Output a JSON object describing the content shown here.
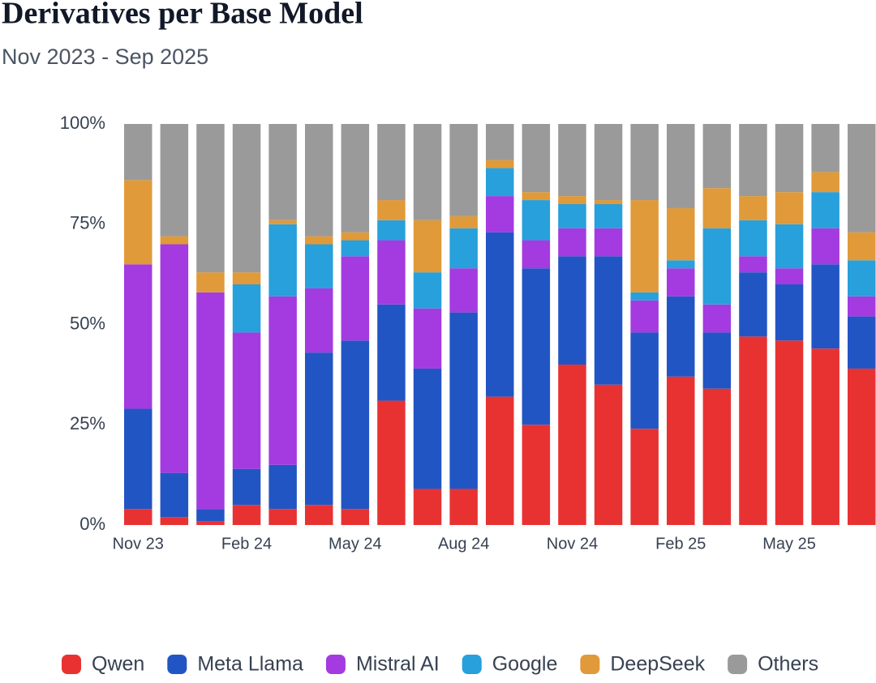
{
  "chart_data": {
    "type": "stacked_bar_percent",
    "title": "Derivatives per Base Model",
    "subtitle": "Nov 2023 - Sep 2025",
    "categories": [
      "Nov 23",
      null,
      null,
      "Feb 24",
      null,
      null,
      "May 24",
      null,
      null,
      "Aug 24",
      null,
      null,
      "Nov 24",
      null,
      null,
      "Feb 25",
      null,
      null,
      "May 25",
      null,
      null
    ],
    "ylim": [
      0,
      100
    ],
    "yticks": [
      {
        "value": 0,
        "label": "0%"
      },
      {
        "value": 25,
        "label": "25%"
      },
      {
        "value": 50,
        "label": "50%"
      },
      {
        "value": 75,
        "label": "75%"
      },
      {
        "value": 100,
        "label": "100%"
      }
    ],
    "series": [
      {
        "name": "Qwen",
        "color": "#e83232",
        "values": [
          4,
          2,
          1,
          5,
          4,
          5,
          4,
          31,
          9,
          9,
          32,
          25,
          40,
          35,
          24,
          37,
          34,
          47,
          46,
          44,
          39
        ]
      },
      {
        "name": "Meta Llama",
        "color": "#2255c4",
        "values": [
          25,
          11,
          3,
          9,
          11,
          38,
          42,
          24,
          30,
          44,
          41,
          39,
          27,
          32,
          24,
          20,
          14,
          16,
          14,
          21,
          13
        ]
      },
      {
        "name": "Mistral AI",
        "color": "#a33be0",
        "values": [
          36,
          57,
          54,
          34,
          42,
          16,
          21,
          16,
          15,
          11,
          9,
          7,
          7,
          7,
          8,
          7,
          7,
          4,
          4,
          9,
          5
        ]
      },
      {
        "name": "Google",
        "color": "#27a0db",
        "values": [
          0,
          0,
          0,
          12,
          18,
          11,
          4,
          5,
          9,
          10,
          7,
          10,
          6,
          6,
          2,
          2,
          19,
          9,
          11,
          9,
          9
        ]
      },
      {
        "name": "DeepSeek",
        "color": "#e09a3a",
        "values": [
          21,
          2,
          5,
          3,
          1,
          2,
          2,
          5,
          13,
          3,
          2,
          2,
          2,
          1,
          23,
          13,
          10,
          6,
          8,
          5,
          7
        ]
      },
      {
        "name": "Others",
        "color": "#9a9a9a",
        "values": [
          14,
          28,
          37,
          37,
          24,
          28,
          27,
          19,
          24,
          23,
          9,
          17,
          18,
          19,
          19,
          21,
          16,
          18,
          17,
          12,
          27
        ]
      }
    ]
  }
}
